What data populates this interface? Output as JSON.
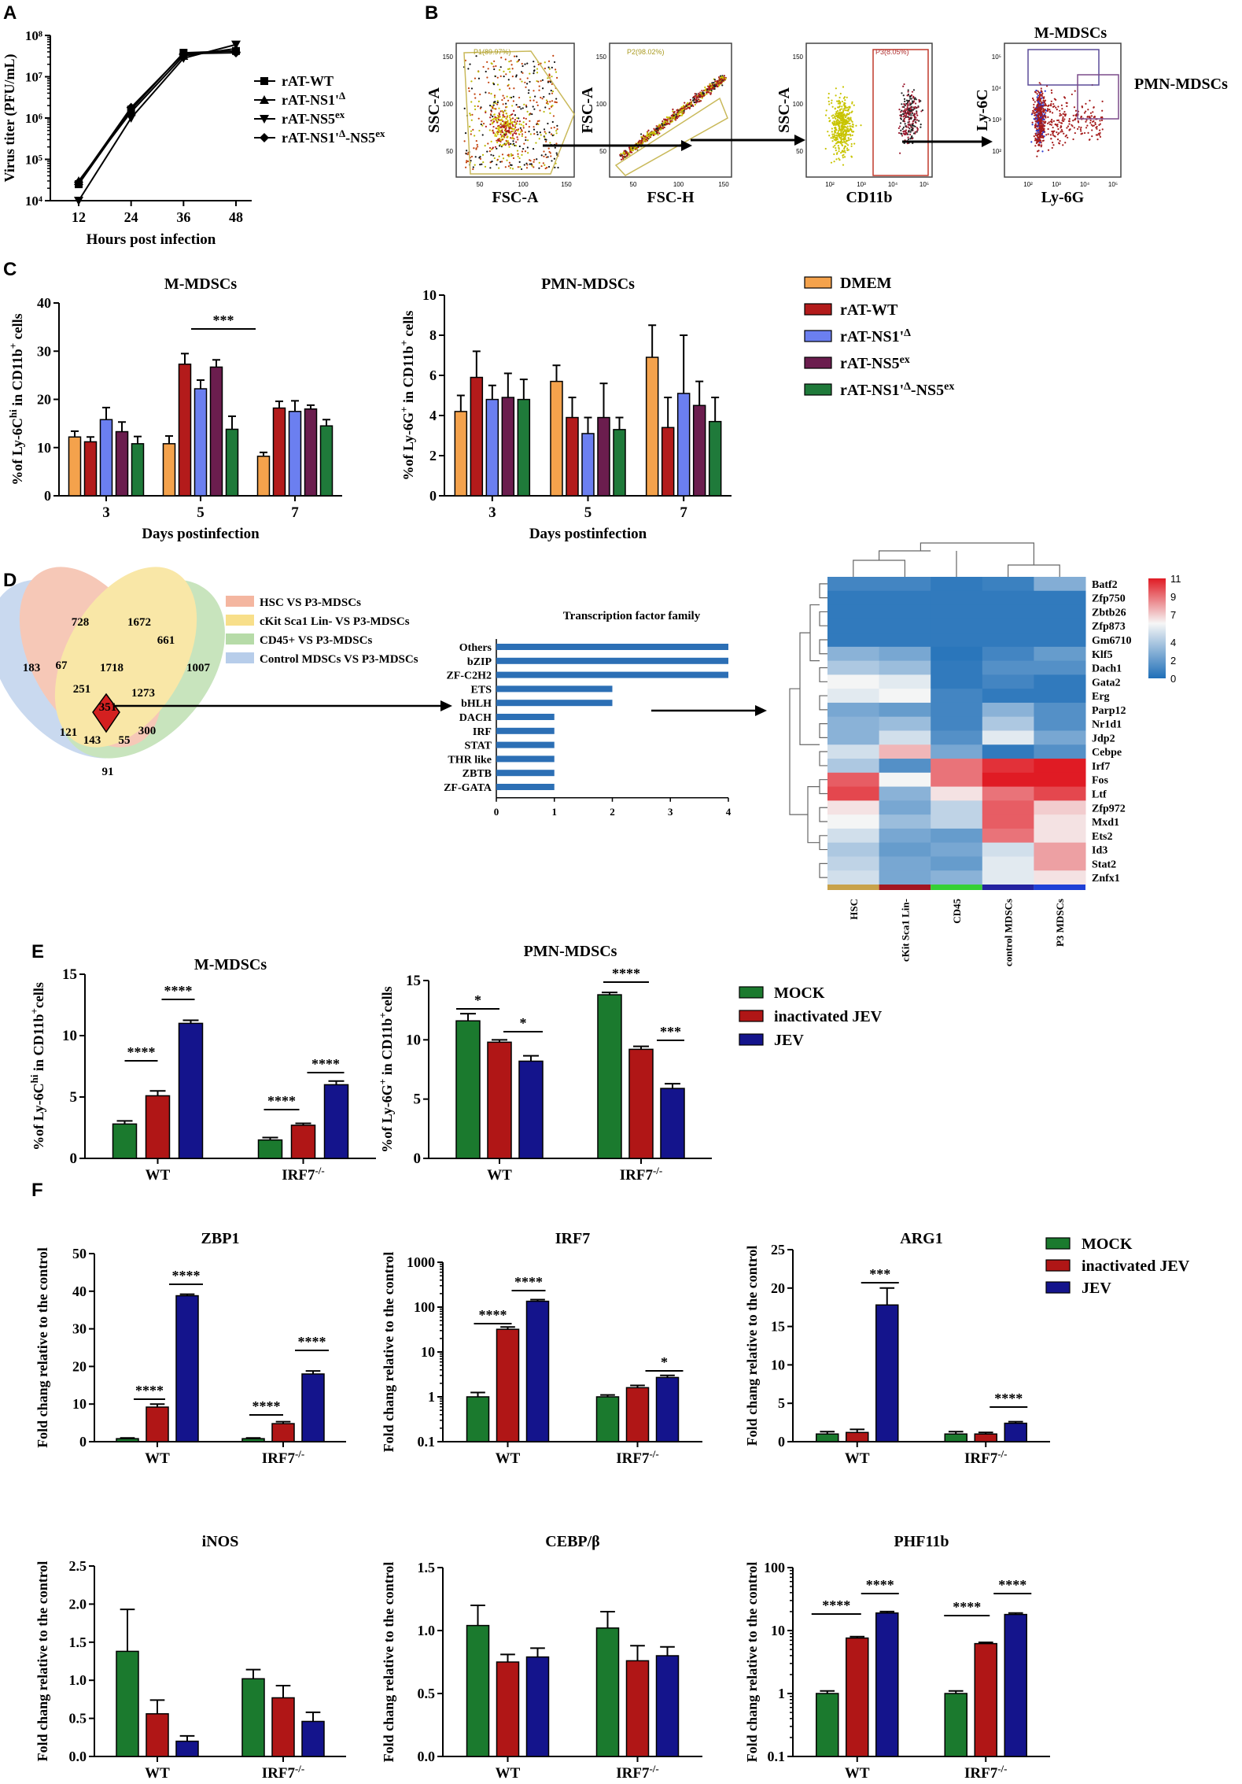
{
  "colors": {
    "DMEM": "#f4a24c",
    "rATWT": "#b31b1b",
    "NS1": "#6b7ff0",
    "NS5": "#6b1d4e",
    "NS1NS5": "#1f7a3a",
    "mock": "#1b7a2e",
    "inact": "#b01616",
    "jev": "#14148c",
    "tf_bar": "#2c6fb5",
    "venn_hsc": "#f4b6a0",
    "venn_ckit": "#f8df8a",
    "venn_cd45": "#b6dba8",
    "venn_ctrl": "#b7cdea",
    "heat_low": "#1f6fb8",
    "heat_mid": "#f6f6f6",
    "heat_high": "#e01b24",
    "col_hsc": "#c8a24a",
    "col_ckit": "#a31621",
    "col_cd45": "#35d035",
    "col_ctrl": "#2323a0",
    "col_p3": "#1f3fd6"
  },
  "panels": {
    "A": "A",
    "B": "B",
    "C": "C",
    "D": "D",
    "E": "E",
    "F": "F"
  },
  "chart_data": [
    {
      "id": "A",
      "type": "line",
      "title": "",
      "xlabel": "Hours post infection",
      "ylabel": "Virus titer (PFU/mL)",
      "x": [
        12,
        24,
        36,
        48
      ],
      "xticks": [
        "12",
        "24",
        "36",
        "48"
      ],
      "ylog": true,
      "ylim": [
        10000,
        100000000
      ],
      "yticks": [
        "10⁴",
        "10⁵",
        "10⁶",
        "10⁷",
        "10⁸"
      ],
      "series": [
        {
          "name": "rAT-WT",
          "marker": "square",
          "values": [
            25000,
            1600000,
            38000000,
            42000000
          ]
        },
        {
          "name": "rAT-NS1'Δ",
          "marker": "triangle-up",
          "values": [
            30000,
            1400000,
            32000000,
            48000000
          ]
        },
        {
          "name": "rAT-NS5ex",
          "marker": "triangle-down",
          "values": [
            10000,
            1000000,
            28000000,
            60000000
          ]
        },
        {
          "name": "rAT-NS1'Δ-NS5ex",
          "marker": "diamond",
          "values": [
            28000,
            1800000,
            36000000,
            38000000
          ]
        }
      ],
      "legend": [
        "rAT-WT",
        "rAT-NS1'Δ",
        "rAT-NS5ex",
        "rAT-NS1'Δ-NS5ex"
      ]
    },
    {
      "id": "B",
      "type": "scatter",
      "title": "Flow cytometry gating",
      "plots": [
        {
          "xlabel": "FSC-A",
          "ylabel": "SSC-A",
          "gate": "P1(89.97%)",
          "xticks": [
            "50",
            "100",
            "150"
          ],
          "yticks": [
            "50",
            "100",
            "150"
          ]
        },
        {
          "xlabel": "FSC-H",
          "ylabel": "FSC-A",
          "gate": "P2(98.02%)",
          "xticks": [
            "50",
            "100",
            "150"
          ],
          "yticks": [
            "50",
            "100",
            "150"
          ]
        },
        {
          "xlabel": "CD11b",
          "ylabel": "SSC-A",
          "gate": "P3(8.05%)",
          "xticks": [
            "10²",
            "10³",
            "10⁴",
            "10⁵"
          ],
          "yticks": [
            "50",
            "100",
            "150"
          ]
        },
        {
          "xlabel": "Ly-6G",
          "ylabel": "Ly-6C",
          "gate": "",
          "xticks": [
            "10²",
            "10³",
            "10⁴",
            "10⁵"
          ],
          "yticks": [
            "10²",
            "10³",
            "10⁴",
            "10⁵"
          ]
        }
      ],
      "labels": {
        "m": "M-MDSCs",
        "pmn": "PMN-MDSCs"
      }
    },
    {
      "id": "C1",
      "type": "bar",
      "title": "M-MDSCs",
      "ylabel": "%of Ly-6Chi in CD11b+ cells",
      "xlabel": "Days postinfection",
      "categories": [
        "3",
        "5",
        "7"
      ],
      "ylim": [
        0,
        40
      ],
      "yticks": [
        "0",
        "10",
        "20",
        "30",
        "40"
      ],
      "series": [
        {
          "name": "DMEM",
          "values": [
            12.2,
            10.8,
            8.2
          ],
          "errors": [
            1.2,
            1.6,
            0.8
          ]
        },
        {
          "name": "rAT-WT",
          "values": [
            11.2,
            27.3,
            18.2
          ],
          "errors": [
            1.0,
            2.2,
            1.4
          ]
        },
        {
          "name": "rAT-NS1'Δ",
          "values": [
            15.8,
            22.2,
            17.5
          ],
          "errors": [
            2.5,
            1.8,
            2.2
          ]
        },
        {
          "name": "rAT-NS5ex",
          "values": [
            13.3,
            26.7,
            18.0
          ],
          "errors": [
            2.0,
            1.5,
            0.8
          ]
        },
        {
          "name": "rAT-NS1'Δ-NS5ex",
          "values": [
            10.8,
            13.8,
            14.5
          ],
          "errors": [
            1.5,
            2.7,
            1.3
          ]
        }
      ],
      "annotations": [
        {
          "text": "***",
          "category": "5"
        }
      ]
    },
    {
      "id": "C2",
      "type": "bar",
      "title": "PMN-MDSCs",
      "ylabel": "%of Ly-6G+ in CD11b+ cells",
      "xlabel": "Days postinfection",
      "categories": [
        "3",
        "5",
        "7"
      ],
      "ylim": [
        0,
        10
      ],
      "yticks": [
        "0",
        "2",
        "4",
        "6",
        "8",
        "10"
      ],
      "series": [
        {
          "name": "DMEM",
          "values": [
            4.2,
            5.7,
            6.9
          ],
          "errors": [
            0.8,
            0.8,
            1.6
          ]
        },
        {
          "name": "rAT-WT",
          "values": [
            5.9,
            3.9,
            3.4
          ],
          "errors": [
            1.3,
            1.0,
            1.5
          ]
        },
        {
          "name": "rAT-NS1'Δ",
          "values": [
            4.8,
            3.1,
            5.1
          ],
          "errors": [
            0.7,
            0.8,
            2.9
          ]
        },
        {
          "name": "rAT-NS5ex",
          "values": [
            4.9,
            3.9,
            4.5
          ],
          "errors": [
            1.2,
            1.7,
            1.2
          ]
        },
        {
          "name": "rAT-NS1'Δ-NS5ex",
          "values": [
            4.8,
            3.3,
            3.7
          ],
          "errors": [
            1.0,
            0.6,
            1.2
          ]
        }
      ],
      "legend": [
        "DMEM",
        "rAT-WT",
        "rAT-NS1'Δ",
        "rAT-NS5ex",
        "rAT-NS1'Δ-NS5ex"
      ]
    },
    {
      "id": "D_venn",
      "type": "venn",
      "sets": [
        "HSC VS P3-MDSCs",
        "cKit Sca1 Lin- VS P3-MDSCs",
        "CD45+ VS P3-MDSCs",
        "Control MDSCs VS P3-MDSCs"
      ],
      "counts": [
        "728",
        "1672",
        "183",
        "67",
        "1718",
        "661",
        "1007",
        "251",
        "1273",
        "351",
        "121",
        "143",
        "55",
        "300",
        "91"
      ]
    },
    {
      "id": "D_tf",
      "type": "bar",
      "orientation": "horizontal",
      "title": "Transcription factor family",
      "categories": [
        "Others",
        "bZIP",
        "ZF-C2H2",
        "ETS",
        "bHLH",
        "DACH",
        "IRF",
        "STAT",
        "THR like",
        "ZBTB",
        "ZF-GATA"
      ],
      "values": [
        4,
        4,
        4,
        2,
        2,
        1,
        1,
        1,
        1,
        1,
        1
      ],
      "xlim": [
        0,
        4
      ],
      "xticks": [
        "0",
        "1",
        "2",
        "3",
        "4"
      ]
    },
    {
      "id": "D_heat",
      "type": "heatmap",
      "rows": [
        "Batf2",
        "Zfp750",
        "Zbtb26",
        "Zfp873",
        "Gm6710",
        "Klf5",
        "Dach1",
        "Gata2",
        "Erg",
        "Parp12",
        "Nr1d1",
        "Jdp2",
        "Cebpe",
        "Irf7",
        "Fos",
        "Ltf",
        "Zfp972",
        "Mxd1",
        "Ets2",
        "Id3",
        "Stat2",
        "Znfx1"
      ],
      "columns": [
        "HSC",
        "cKit Sca1 Lin-",
        "CD45",
        "control MDSCs",
        "P3 MDSCs"
      ],
      "values": [
        [
          1.0,
          1.0,
          0.5,
          0.8,
          2.8
        ],
        [
          0.5,
          0.5,
          0.5,
          0.5,
          0.5
        ],
        [
          0.5,
          0.5,
          0.5,
          0.5,
          0.5
        ],
        [
          0.5,
          0.5,
          0.5,
          0.5,
          0.5
        ],
        [
          0.5,
          0.5,
          0.5,
          0.5,
          0.5
        ],
        [
          3.0,
          2.5,
          0.3,
          1.0,
          2.0
        ],
        [
          4.0,
          3.5,
          0.5,
          1.5,
          1.5
        ],
        [
          6.0,
          5.5,
          0.5,
          1.0,
          0.5
        ],
        [
          5.5,
          6.0,
          1.0,
          0.5,
          0.5
        ],
        [
          2.5,
          2.0,
          1.0,
          3.0,
          1.5
        ],
        [
          3.0,
          3.5,
          1.0,
          4.0,
          1.5
        ],
        [
          3.0,
          5.0,
          1.5,
          5.5,
          2.5
        ],
        [
          5.0,
          7.5,
          2.5,
          0.5,
          1.5
        ],
        [
          4.0,
          1.5,
          9.0,
          10.5,
          11.0
        ],
        [
          9.5,
          6.0,
          9.0,
          11.0,
          11.0
        ],
        [
          10.0,
          3.0,
          6.5,
          9.0,
          10.0
        ],
        [
          6.5,
          2.5,
          4.5,
          9.5,
          7.0
        ],
        [
          6.0,
          3.5,
          4.5,
          9.5,
          6.5
        ],
        [
          5.0,
          2.5,
          2.0,
          9.0,
          6.5
        ],
        [
          4.0,
          2.0,
          2.5,
          5.0,
          8.0
        ],
        [
          4.5,
          2.5,
          2.0,
          5.5,
          8.0
        ],
        [
          5.0,
          2.5,
          3.0,
          5.5,
          6.5
        ]
      ],
      "colorbar": {
        "min": 0,
        "max": 11,
        "ticks": [
          "11",
          "9",
          "7",
          "4",
          "2",
          "0"
        ]
      }
    },
    {
      "id": "E1",
      "type": "bar",
      "title": "M-MDSCs",
      "ylabel": "%of Ly-6Chi in CD11b+ cells",
      "categories": [
        "WT",
        "IRF7-/-"
      ],
      "ylim": [
        0,
        15
      ],
      "yticks": [
        "0",
        "5",
        "10",
        "15"
      ],
      "series": [
        {
          "name": "MOCK",
          "values": [
            2.8,
            1.5
          ],
          "errors": [
            0.25,
            0.2
          ]
        },
        {
          "name": "inactivated JEV",
          "values": [
            5.1,
            2.7
          ],
          "errors": [
            0.4,
            0.15
          ]
        },
        {
          "name": "JEV",
          "values": [
            11.0,
            6.0
          ],
          "errors": [
            0.25,
            0.3
          ]
        }
      ],
      "annotations": [
        {
          "text": "****"
        },
        {
          "text": "****"
        },
        {
          "text": "****"
        },
        {
          "text": "****"
        }
      ]
    },
    {
      "id": "E2",
      "type": "bar",
      "title": "PMN-MDSCs",
      "ylabel": "%of Ly-6G+ in CD11b+ cells",
      "categories": [
        "WT",
        "IRF7-/-"
      ],
      "ylim": [
        0,
        15
      ],
      "yticks": [
        "0",
        "5",
        "10",
        "15"
      ],
      "series": [
        {
          "name": "MOCK",
          "values": [
            11.6,
            13.8
          ],
          "errors": [
            0.6,
            0.2
          ]
        },
        {
          "name": "inactivated JEV",
          "values": [
            9.8,
            9.2
          ],
          "errors": [
            0.2,
            0.25
          ]
        },
        {
          "name": "JEV",
          "values": [
            8.2,
            5.9
          ],
          "errors": [
            0.45,
            0.4
          ]
        }
      ],
      "annotations": [
        {
          "text": "*"
        },
        {
          "text": "*"
        },
        {
          "text": "****"
        },
        {
          "text": "***"
        }
      ],
      "legend": [
        "MOCK",
        "inactivated JEV",
        "JEV"
      ]
    },
    {
      "id": "F_ZBP1",
      "type": "bar",
      "title": "ZBP1",
      "ylabel": "Fold chang relative to the control",
      "categories": [
        "WT",
        "IRF7-/-"
      ],
      "ylim": [
        0,
        50
      ],
      "yticks": [
        "0",
        "10",
        "20",
        "30",
        "40",
        "50"
      ],
      "series": [
        {
          "name": "MOCK",
          "values": [
            0.8,
            0.8
          ],
          "errors": [
            0.2,
            0.2
          ]
        },
        {
          "name": "inactivated JEV",
          "values": [
            9.2,
            4.8
          ],
          "errors": [
            0.8,
            0.5
          ]
        },
        {
          "name": "JEV",
          "values": [
            38.8,
            18.0
          ],
          "errors": [
            0.4,
            0.8
          ]
        }
      ],
      "annotations": [
        {
          "text": "****"
        },
        {
          "text": "****"
        },
        {
          "text": "****"
        },
        {
          "text": "****"
        }
      ]
    },
    {
      "id": "F_IRF7",
      "type": "bar",
      "title": "IRF7",
      "ylabel": "Fold chang relative to the control",
      "categories": [
        "WT",
        "IRF7-/-"
      ],
      "ylog": true,
      "ylim": [
        0.1,
        1000
      ],
      "yticks": [
        "0.1",
        "1",
        "10",
        "100",
        "1000"
      ],
      "series": [
        {
          "name": "MOCK",
          "values": [
            1.0,
            1.0
          ],
          "errors": [
            0.25,
            0.1
          ]
        },
        {
          "name": "inactivated JEV",
          "values": [
            32,
            1.6
          ],
          "errors": [
            4,
            0.2
          ]
        },
        {
          "name": "JEV",
          "values": [
            135,
            2.7
          ],
          "errors": [
            12,
            0.3
          ]
        }
      ],
      "annotations": [
        {
          "text": "****"
        },
        {
          "text": "****"
        },
        {
          "text": "*"
        }
      ]
    },
    {
      "id": "F_ARG1",
      "type": "bar",
      "title": "ARG1",
      "ylabel": "Fold chang relative to the control",
      "categories": [
        "WT",
        "IRF7-/-"
      ],
      "ylim": [
        0,
        25
      ],
      "yticks": [
        "0",
        "5",
        "10",
        "15",
        "20",
        "25"
      ],
      "series": [
        {
          "name": "MOCK",
          "values": [
            1.0,
            1.0
          ],
          "errors": [
            0.3,
            0.3
          ]
        },
        {
          "name": "inactivated JEV",
          "values": [
            1.2,
            1.0
          ],
          "errors": [
            0.4,
            0.2
          ]
        },
        {
          "name": "JEV",
          "values": [
            17.8,
            2.4
          ],
          "errors": [
            2.2,
            0.2
          ]
        }
      ],
      "annotations": [
        {
          "text": "***"
        },
        {
          "text": "****"
        }
      ],
      "legend": [
        "MOCK",
        "inactivated JEV",
        "JEV"
      ]
    },
    {
      "id": "F_iNOS",
      "type": "bar",
      "title": "iNOS",
      "ylabel": "Fold chang relative to the control",
      "categories": [
        "WT",
        "IRF7-/-"
      ],
      "ylim": [
        0,
        2.5
      ],
      "yticks": [
        "0.0",
        "0.5",
        "1.0",
        "1.5",
        "2.0",
        "2.5"
      ],
      "series": [
        {
          "name": "MOCK",
          "values": [
            1.38,
            1.02
          ],
          "errors": [
            0.55,
            0.12
          ]
        },
        {
          "name": "inactivated JEV",
          "values": [
            0.56,
            0.77
          ],
          "errors": [
            0.18,
            0.16
          ]
        },
        {
          "name": "JEV",
          "values": [
            0.2,
            0.46
          ],
          "errors": [
            0.07,
            0.12
          ]
        }
      ]
    },
    {
      "id": "F_CEBP",
      "type": "bar",
      "title": "CEBP/β",
      "ylabel": "Fold chang relative to the control",
      "categories": [
        "WT",
        "IRF7-/-"
      ],
      "ylim": [
        0,
        1.5
      ],
      "yticks": [
        "0.0",
        "0.5",
        "1.0",
        "1.5"
      ],
      "series": [
        {
          "name": "MOCK",
          "values": [
            1.04,
            1.02
          ],
          "errors": [
            0.16,
            0.13
          ]
        },
        {
          "name": "inactivated JEV",
          "values": [
            0.75,
            0.76
          ],
          "errors": [
            0.06,
            0.12
          ]
        },
        {
          "name": "JEV",
          "values": [
            0.79,
            0.8
          ],
          "errors": [
            0.07,
            0.07
          ]
        }
      ]
    },
    {
      "id": "F_PHF11b",
      "type": "bar",
      "title": "PHF11b",
      "ylabel": "Fold chang relative to the control",
      "categories": [
        "WT",
        "IRF7-/-"
      ],
      "ylog": true,
      "ylim": [
        0.1,
        100
      ],
      "yticks": [
        "0.1",
        "1",
        "10",
        "100"
      ],
      "series": [
        {
          "name": "MOCK",
          "values": [
            1.0,
            1.0
          ],
          "errors": [
            0.1,
            0.1
          ]
        },
        {
          "name": "inactivated JEV",
          "values": [
            7.6,
            6.2
          ],
          "errors": [
            0.4,
            0.3
          ]
        },
        {
          "name": "JEV",
          "values": [
            19,
            18
          ],
          "errors": [
            1.0,
            1.0
          ]
        }
      ],
      "annotations": [
        {
          "text": "****"
        },
        {
          "text": "****"
        },
        {
          "text": "****"
        },
        {
          "text": "****"
        }
      ]
    }
  ]
}
